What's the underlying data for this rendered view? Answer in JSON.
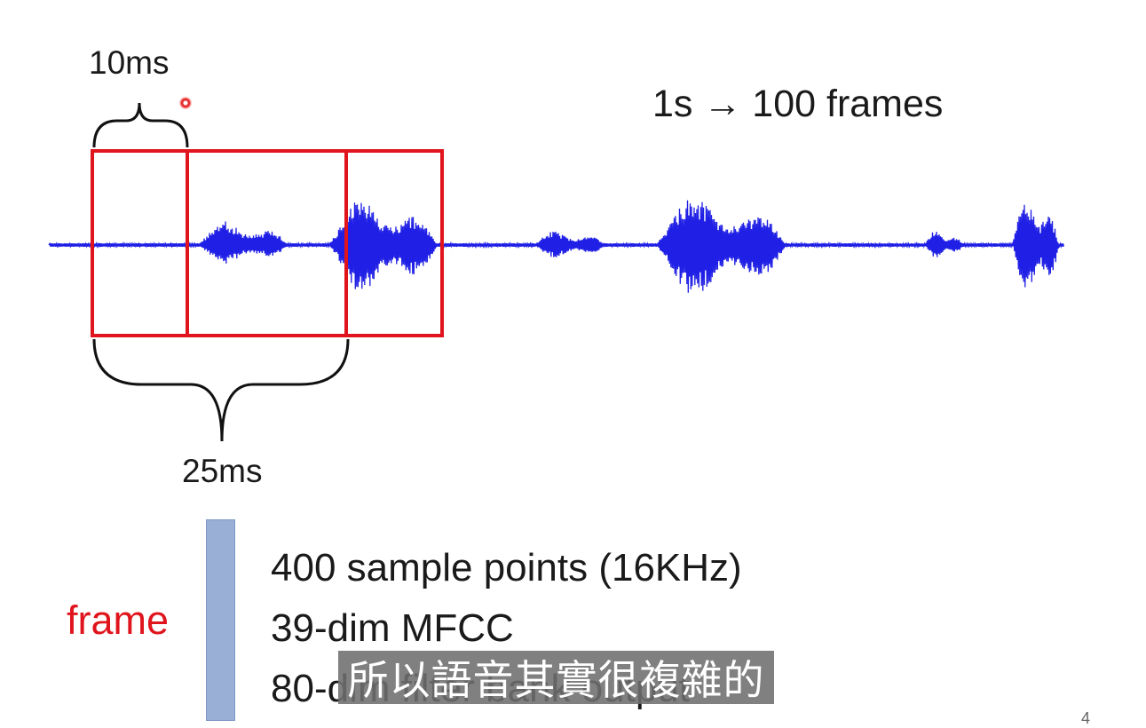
{
  "slide": {
    "shift_label": "10ms",
    "window_label": "25ms",
    "rate_text": "1s → 100 frames",
    "frame_label": "frame",
    "specs": [
      "400 sample points (16KHz)",
      "39-dim MFCC",
      "80-dim filter bank output"
    ],
    "page_number": "4"
  },
  "subtitle": "所以語音其實很複雜的",
  "colors": {
    "waveform": "#1f1fe6",
    "frame_box": "#e0141c",
    "frame_bar": "#9aafd6",
    "subtitle_bg": "#6e6e6e"
  },
  "icons": {
    "pointer": "laser-pointer-icon"
  }
}
